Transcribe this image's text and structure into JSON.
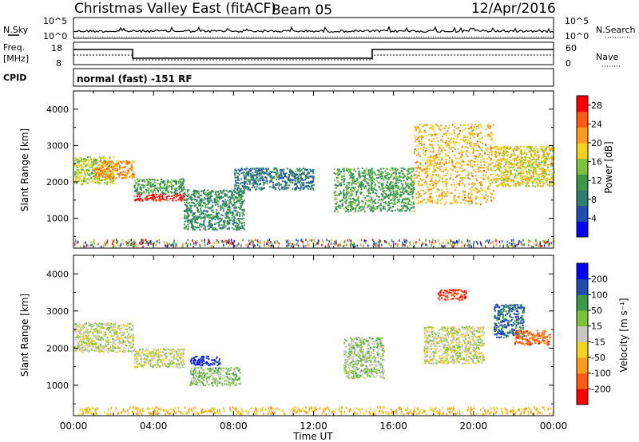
{
  "header": {
    "station": "Christmas Valley East (fitACF)",
    "beam": "Beam 05",
    "date": "12/Apr/2016"
  },
  "top_panels": {
    "noise": {
      "left_label": "N.Sky",
      "right_label": "N.Search",
      "left_ticks": [
        "10^5",
        "10^0"
      ],
      "right_ticks": [
        "10^5",
        "10^0"
      ]
    },
    "freq": {
      "left_label_1": "Freq.",
      "left_label_2": "[MHz]",
      "right_label": "Nave",
      "left_ticks": [
        "18",
        "8"
      ],
      "right_ticks": [
        "60",
        "0"
      ]
    },
    "cpid": {
      "label": "CPID",
      "text": "normal (fast) -151 RF"
    }
  },
  "colors": {
    "power_scale": [
      "#0000ff",
      "#1e4fb0",
      "#2e7d6e",
      "#3a9a4a",
      "#7cc23a",
      "#f2d21b",
      "#ff9a1a",
      "#ff5a10",
      "#ff0000"
    ],
    "velocity_scale": [
      "#ff0000",
      "#ff5a10",
      "#ff9a1a",
      "#f2d21b",
      "#c8c8c0",
      "#7cc23a",
      "#3a9a4a",
      "#1e4fb0",
      "#0000ff"
    ]
  },
  "chart_data": [
    {
      "type": "heatmap",
      "title": "",
      "xlabel": "",
      "ylabel": "Slant Range [km]",
      "x_ticks": [
        "00:00",
        "04:00",
        "08:00",
        "12:00",
        "16:00",
        "20:00",
        "00:00"
      ],
      "xlim_hours": [
        0,
        24
      ],
      "y_ticks": [
        1000,
        2000,
        3000,
        4000
      ],
      "ylim": [
        180,
        4500
      ],
      "colorbar": {
        "label": "Power [dB]",
        "ticks": [
          4,
          8,
          12,
          16,
          20,
          24,
          28
        ],
        "range": [
          0,
          30
        ]
      },
      "echo_regions": [
        {
          "t0": 0.0,
          "t1": 2.0,
          "r0": 1950,
          "r1": 2700,
          "value": 16
        },
        {
          "t0": 1.0,
          "t1": 3.0,
          "r0": 2100,
          "r1": 2600,
          "value": 22
        },
        {
          "t0": 3.0,
          "t1": 5.5,
          "r0": 1500,
          "r1": 1700,
          "value": 28
        },
        {
          "t0": 3.0,
          "t1": 5.5,
          "r0": 1700,
          "r1": 2100,
          "value": 12
        },
        {
          "t0": 5.5,
          "t1": 8.5,
          "r0": 700,
          "r1": 1800,
          "value": 10
        },
        {
          "t0": 8.0,
          "t1": 12.0,
          "r0": 1800,
          "r1": 2400,
          "value": 8
        },
        {
          "t0": 13.0,
          "t1": 17.0,
          "r0": 1200,
          "r1": 2400,
          "value": 12
        },
        {
          "t0": 17.0,
          "t1": 21.0,
          "r0": 1400,
          "r1": 3600,
          "value": 20
        },
        {
          "t0": 21.0,
          "t1": 24.0,
          "r0": 1900,
          "r1": 3000,
          "value": 18
        }
      ]
    },
    {
      "type": "heatmap",
      "title": "",
      "xlabel": "Time UT",
      "ylabel": "Slant Range [km]",
      "x_ticks": [
        "00:00",
        "04:00",
        "08:00",
        "12:00",
        "16:00",
        "20:00",
        "00:00"
      ],
      "xlim_hours": [
        0,
        24
      ],
      "y_ticks": [
        1000,
        2000,
        3000,
        4000
      ],
      "ylim": [
        180,
        4500
      ],
      "colorbar": {
        "label": "Velocity [m s⁻¹]",
        "ticks": [
          -200,
          -100,
          -50,
          -15,
          15,
          50,
          100,
          200
        ],
        "range": [
          -250,
          250
        ]
      },
      "echo_regions": [
        {
          "t0": 0.0,
          "t1": 3.0,
          "r0": 1900,
          "r1": 2700,
          "value": 0
        },
        {
          "t0": 3.0,
          "t1": 5.5,
          "r0": 1500,
          "r1": 2000,
          "value": 0
        },
        {
          "t0": 5.8,
          "t1": 7.3,
          "r0": 1550,
          "r1": 1800,
          "value": 200
        },
        {
          "t0": 5.8,
          "t1": 8.3,
          "r0": 1000,
          "r1": 1500,
          "value": 40
        },
        {
          "t0": 13.5,
          "t1": 15.5,
          "r0": 1200,
          "r1": 2300,
          "value": 30
        },
        {
          "t0": 17.5,
          "t1": 20.5,
          "r0": 1600,
          "r1": 2600,
          "value": 0
        },
        {
          "t0": 18.2,
          "t1": 19.6,
          "r0": 3300,
          "r1": 3600,
          "value": -200
        },
        {
          "t0": 21.0,
          "t1": 22.5,
          "r0": 2300,
          "r1": 3200,
          "value": 150
        },
        {
          "t0": 22.0,
          "t1": 23.8,
          "r0": 2100,
          "r1": 2500,
          "value": -150
        }
      ]
    }
  ]
}
